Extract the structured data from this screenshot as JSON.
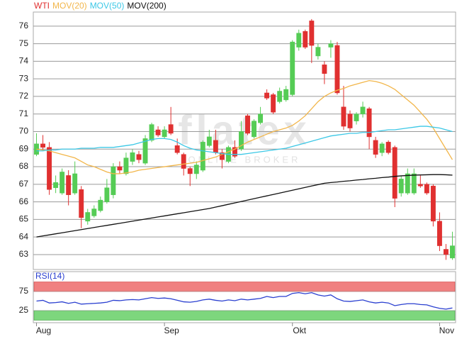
{
  "chart_data": [
    {
      "type": "candlestick",
      "watermark": "flatex",
      "watermark_sub": "ONLINE BROKER",
      "categories": [
        "Aug",
        null,
        null,
        null,
        null,
        null,
        null,
        null,
        null,
        null,
        null,
        null,
        null,
        null,
        null,
        null,
        null,
        null,
        null,
        null,
        "Sep",
        null,
        null,
        null,
        null,
        null,
        null,
        null,
        null,
        null,
        null,
        null,
        null,
        null,
        null,
        null,
        null,
        null,
        null,
        null,
        "Okt",
        null,
        null,
        null,
        null,
        null,
        null,
        null,
        null,
        null,
        null,
        null,
        null,
        null,
        null,
        null,
        null,
        null,
        null,
        null,
        null,
        null,
        null,
        "Nov",
        null,
        null
      ],
      "ylim": [
        62.15,
        76.8
      ],
      "yticks": [
        63,
        64,
        65,
        66,
        67,
        68,
        69,
        70,
        71,
        72,
        73,
        74,
        75,
        76
      ],
      "grid": true,
      "series": [
        {
          "name": "WTI",
          "type": "candlestick",
          "color": "#e03030",
          "up_color": "#55cc55",
          "open": [
            68.7,
            69.3,
            69.1,
            66.8,
            66.5,
            67.5,
            66.5,
            66.7,
            64.9,
            65.2,
            65.5,
            66.0,
            66.4,
            68.0,
            67.6,
            68.3,
            68.7,
            68.2,
            69.5,
            70.1,
            69.7,
            70.4,
            69.2,
            68.7,
            67.9,
            67.6,
            67.8,
            69.2,
            69.5,
            68.8,
            68.3,
            69.1,
            69.0,
            70.9,
            69.7,
            70.5,
            72.2,
            72.1,
            71.7,
            71.8,
            72.1,
            74.8,
            75.7,
            76.3,
            74.3,
            73.8,
            74.8,
            74.9,
            71.4,
            71.0,
            70.6,
            71.0,
            71.3,
            69.5,
            68.8,
            69.4,
            69.1,
            66.5,
            66.5,
            66.5,
            67.0,
            67.0,
            66.9,
            64.9,
            63.3,
            62.8
          ],
          "high": [
            69.9,
            69.8,
            69.4,
            67.5,
            67.9,
            67.8,
            68.3,
            66.9,
            65.6,
            65.8,
            66.3,
            67.3,
            68.2,
            68.3,
            68.8,
            69.0,
            68.9,
            69.8,
            70.5,
            70.3,
            70.3,
            71.4,
            69.6,
            68.8,
            68.0,
            68.3,
            69.5,
            70.1,
            70.1,
            69.0,
            69.2,
            69.5,
            70.6,
            71.0,
            70.7,
            71.4,
            72.4,
            72.2,
            72.5,
            72.6,
            75.2,
            75.8,
            75.8,
            76.4,
            75.0,
            74.0,
            75.2,
            75.1,
            72.6,
            71.2,
            71.1,
            71.7,
            71.4,
            69.7,
            69.4,
            69.5,
            69.2,
            67.5,
            67.9,
            67.9,
            67.5,
            67.1,
            67.0,
            65.4,
            63.6,
            64.3
          ],
          "low": [
            68.6,
            68.9,
            66.4,
            66.5,
            66.4,
            65.8,
            66.4,
            64.5,
            64.7,
            65.1,
            65.4,
            65.9,
            66.2,
            67.6,
            67.5,
            68.1,
            68.2,
            68.1,
            69.4,
            69.7,
            69.6,
            69.8,
            68.7,
            67.5,
            66.9,
            67.3,
            67.7,
            69.1,
            68.7,
            67.9,
            68.2,
            68.5,
            68.9,
            69.8,
            69.6,
            70.4,
            71.8,
            71.0,
            71.6,
            71.7,
            72.0,
            74.6,
            74.7,
            73.9,
            74.1,
            72.7,
            74.2,
            72.1,
            70.1,
            70.0,
            70.4,
            70.8,
            69.0,
            68.5,
            68.6,
            68.7,
            65.7,
            66.3,
            66.4,
            66.4,
            66.8,
            66.4,
            64.6,
            63.2,
            62.7,
            62.7
          ],
          "close": [
            69.3,
            69.1,
            66.7,
            67.1,
            67.7,
            66.4,
            67.6,
            65.1,
            65.4,
            65.6,
            66.1,
            66.8,
            68.0,
            67.8,
            68.5,
            68.8,
            68.4,
            69.6,
            70.4,
            69.8,
            70.1,
            69.9,
            68.8,
            67.9,
            67.6,
            68.1,
            69.4,
            69.7,
            68.8,
            68.4,
            69.1,
            68.6,
            70.0,
            69.9,
            70.6,
            71.0,
            71.9,
            71.1,
            72.3,
            72.4,
            75.1,
            75.6,
            74.8,
            74.9,
            74.8,
            73.3,
            75.0,
            72.2,
            70.3,
            70.2,
            71.0,
            71.4,
            69.7,
            68.7,
            69.3,
            68.8,
            66.2,
            67.3,
            67.6,
            67.6,
            66.9,
            66.5,
            64.9,
            63.5,
            63.0,
            63.5
          ]
        },
        {
          "name": "MOV(20)",
          "type": "line",
          "color": "#f2b64a",
          "values": [
            69.0,
            68.95,
            68.9,
            68.8,
            68.7,
            68.6,
            68.5,
            68.3,
            68.1,
            68.0,
            67.85,
            67.7,
            67.6,
            67.6,
            67.65,
            67.7,
            67.8,
            67.85,
            67.9,
            67.95,
            68.0,
            68.05,
            68.1,
            68.15,
            68.2,
            68.25,
            68.35,
            68.45,
            68.55,
            68.7,
            68.85,
            69.0,
            69.2,
            69.4,
            69.55,
            69.7,
            69.85,
            70.0,
            70.1,
            70.2,
            70.35,
            70.6,
            70.9,
            71.3,
            71.7,
            72.0,
            72.2,
            72.35,
            72.45,
            72.6,
            72.7,
            72.8,
            72.9,
            72.85,
            72.75,
            72.6,
            72.4,
            72.1,
            71.8,
            71.5,
            71.1,
            70.7,
            70.2,
            69.6,
            69.0,
            68.4
          ]
        },
        {
          "name": "MOV(50)",
          "type": "line",
          "color": "#3cc8e6",
          "values": [
            68.9,
            68.9,
            68.95,
            68.95,
            69.0,
            69.0,
            69.0,
            69.05,
            69.05,
            69.05,
            69.1,
            69.1,
            69.1,
            69.15,
            69.2,
            69.25,
            69.35,
            69.45,
            69.55,
            69.6,
            69.6,
            69.55,
            69.4,
            69.2,
            69.05,
            68.95,
            68.9,
            68.85,
            68.8,
            68.75,
            68.7,
            68.7,
            68.7,
            68.75,
            68.8,
            68.85,
            68.9,
            68.95,
            69.0,
            69.05,
            69.15,
            69.25,
            69.35,
            69.45,
            69.55,
            69.65,
            69.75,
            69.8,
            69.85,
            69.9,
            69.9,
            69.95,
            69.95,
            70.0,
            70.05,
            70.1,
            70.1,
            70.15,
            70.2,
            70.25,
            70.3,
            70.3,
            70.25,
            70.2,
            70.1,
            70.0
          ]
        },
        {
          "name": "MOV(200)",
          "type": "line",
          "color": "#111111",
          "values": [
            64.0,
            64.06,
            64.12,
            64.18,
            64.24,
            64.3,
            64.36,
            64.42,
            64.48,
            64.54,
            64.6,
            64.66,
            64.72,
            64.78,
            64.84,
            64.9,
            64.96,
            65.02,
            65.08,
            65.14,
            65.2,
            65.26,
            65.32,
            65.38,
            65.44,
            65.5,
            65.56,
            65.62,
            65.7,
            65.78,
            65.86,
            65.94,
            66.02,
            66.1,
            66.18,
            66.26,
            66.34,
            66.42,
            66.5,
            66.58,
            66.66,
            66.74,
            66.82,
            66.9,
            66.98,
            67.06,
            67.1,
            67.13,
            67.17,
            67.2,
            67.24,
            67.27,
            67.31,
            67.34,
            67.38,
            67.41,
            67.45,
            67.48,
            67.5,
            67.52,
            67.53,
            67.54,
            67.55,
            67.55,
            67.54,
            67.52
          ]
        }
      ]
    },
    {
      "type": "line",
      "series": [
        {
          "name": "RSI(14)",
          "color": "#2a3fd0",
          "values": [
            50,
            52,
            45,
            46,
            48,
            44,
            47,
            42,
            43,
            44,
            45,
            47,
            52,
            51,
            53,
            54,
            53,
            56,
            59,
            57,
            58,
            56,
            52,
            48,
            47,
            49,
            53,
            55,
            52,
            50,
            53,
            51,
            55,
            53,
            55,
            57,
            62,
            59,
            62,
            62,
            70,
            72,
            69,
            72,
            66,
            63,
            66,
            56,
            50,
            49,
            51,
            53,
            48,
            45,
            47,
            45,
            38,
            41,
            43,
            43,
            41,
            40,
            35,
            31,
            29,
            32
          ]
        }
      ],
      "ylim": [
        0,
        100
      ],
      "yticks": [
        25,
        75
      ],
      "upper_band_color": "#f08080",
      "lower_band_color": "#7dd67d"
    }
  ]
}
